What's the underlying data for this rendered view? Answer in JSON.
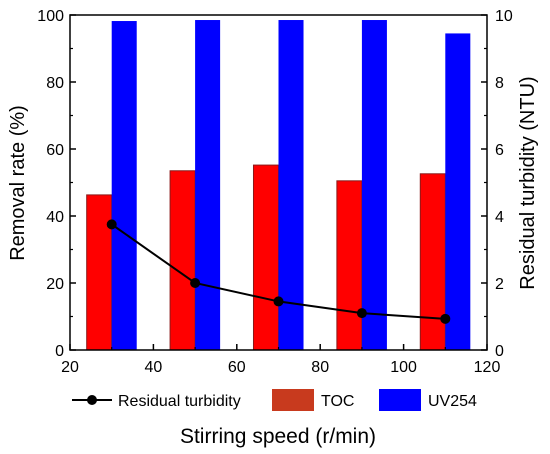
{
  "chart_data": {
    "type": "bar",
    "xlabel": "Stirring speed (r/min)",
    "ylabel_left": "Removal rate (%)",
    "ylabel_right": "Residual turbidity (NTU)",
    "xlim": [
      20,
      120
    ],
    "x_ticks": [
      20,
      40,
      60,
      80,
      100,
      120
    ],
    "ylim_left": [
      0,
      100
    ],
    "y_ticks_left": [
      0,
      20,
      40,
      60,
      80,
      100
    ],
    "ylim_right": [
      0,
      10
    ],
    "y_ticks_right": [
      0,
      2,
      4,
      6,
      8,
      10
    ],
    "x": [
      30,
      50,
      70,
      90,
      110
    ],
    "bar_width": 6,
    "series": [
      {
        "name": "TOC",
        "kind": "bar",
        "axis": "left",
        "color": "#ff0000",
        "edge": "#8b1a1a",
        "offset": -3,
        "values": [
          46.3,
          53.5,
          55.2,
          50.5,
          52.6
        ]
      },
      {
        "name": "UV254",
        "kind": "bar",
        "axis": "left",
        "color": "#0000ff",
        "offset": 3,
        "values": [
          98.2,
          98.5,
          98.5,
          98.5,
          94.5
        ]
      },
      {
        "name": "Residual turbidity",
        "kind": "line",
        "axis": "right",
        "color": "#000000",
        "values": [
          3.75,
          2.0,
          1.45,
          1.1,
          0.93
        ]
      }
    ],
    "legend": [
      {
        "name": "Residual turbidity",
        "symbol": "line"
      },
      {
        "name": "TOC",
        "symbol": "box",
        "color": "#c83a1e"
      },
      {
        "name": "UV254",
        "symbol": "box",
        "color": "#0000ff"
      }
    ],
    "legend_position": "bottom"
  }
}
